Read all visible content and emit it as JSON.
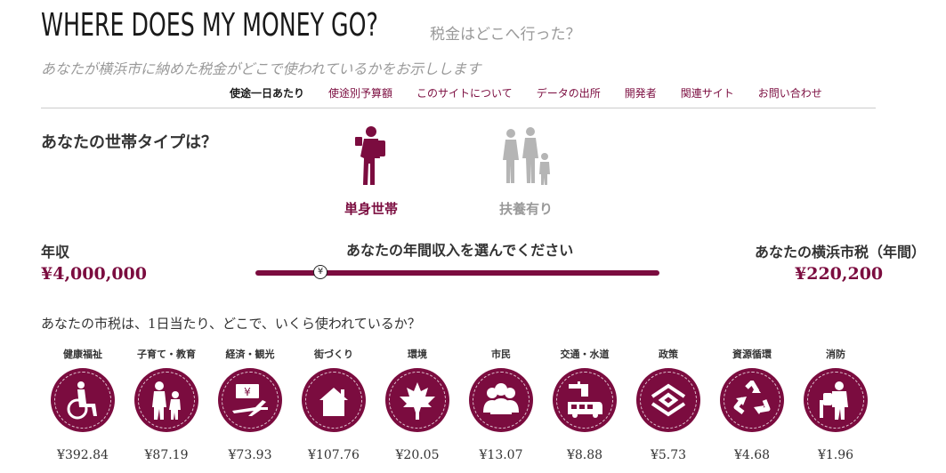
{
  "header": {
    "title": "WHERE DOES MY MONEY GO?",
    "subtitle_jp": "税金はどこへ行った？",
    "tagline": "あなたが横浜市に納めた税金がどこで使われているかをお示しします"
  },
  "nav": {
    "items": [
      {
        "label": "使途一日あたり",
        "active": true
      },
      {
        "label": "使途別予算額",
        "active": false
      },
      {
        "label": "このサイトについて",
        "active": false
      },
      {
        "label": "データの出所",
        "active": false
      },
      {
        "label": "開発者",
        "active": false
      },
      {
        "label": "関連サイト",
        "active": false
      },
      {
        "label": "お問い合わせ",
        "active": false
      }
    ]
  },
  "household": {
    "question": "あなたの世帯タイプは？",
    "options": [
      {
        "label": "単身世帯",
        "icon": "single-person-icon",
        "selected": true
      },
      {
        "label": "扶養有り",
        "icon": "family-icon",
        "selected": false
      }
    ]
  },
  "income": {
    "label": "年収",
    "value": "¥4,000,000",
    "slider_prompt": "あなたの年間収入を選んでください",
    "slider_knob_symbol": "¥",
    "slider_position_fraction": 0.16
  },
  "tax": {
    "label": "あなたの横浜市税（年間）",
    "value": "¥220,200"
  },
  "usage": {
    "question": "あなたの市税は、1日当たり、どこで、いくら使われているか？",
    "categories": [
      {
        "name": "健康福祉",
        "amount": "¥392.84",
        "icon": "wheelchair-icon"
      },
      {
        "name": "子育て・教育",
        "amount": "¥87.19",
        "icon": "family-children-icon"
      },
      {
        "name": "経済・観光",
        "amount": "¥73.93",
        "icon": "yen-airplane-icon"
      },
      {
        "name": "街づくり",
        "amount": "¥107.76",
        "icon": "house-icon"
      },
      {
        "name": "環境",
        "amount": "¥20.05",
        "icon": "leaf-icon"
      },
      {
        "name": "市民",
        "amount": "¥13.07",
        "icon": "people-icon"
      },
      {
        "name": "交通・水道",
        "amount": "¥8.88",
        "icon": "faucet-bus-icon"
      },
      {
        "name": "政策",
        "amount": "¥5.73",
        "icon": "yokohama-emblem-icon"
      },
      {
        "name": "資源循環",
        "amount": "¥4.68",
        "icon": "recycle-icon"
      },
      {
        "name": "消防",
        "amount": "¥1.96",
        "icon": "firefighter-icon"
      }
    ]
  },
  "colors": {
    "accent": "#7b0c3f",
    "inactive": "#b5b5b5",
    "text": "#333333"
  }
}
